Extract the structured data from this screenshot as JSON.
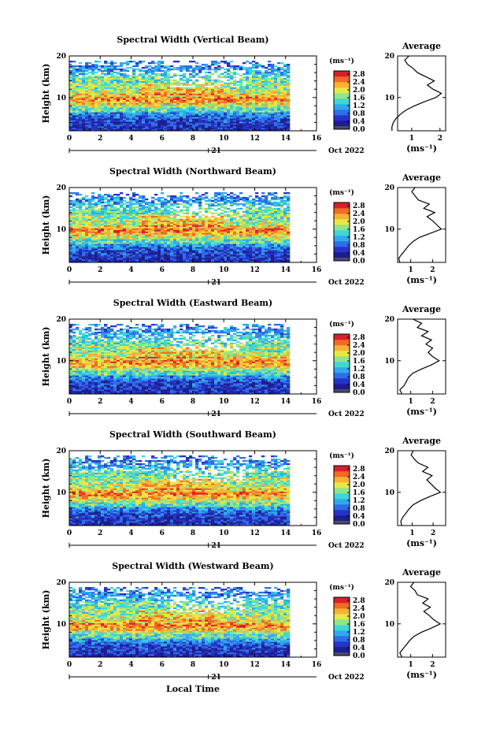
{
  "figure": {
    "xlabel": "Local Time",
    "date_label": "Oct 2022",
    "day_label": "21",
    "avg_title": "Average",
    "avg_xlabel": "(ms⁻¹)",
    "cb_unit": "(ms⁻¹)"
  },
  "colors": {
    "scale": [
      "#1d1d8f",
      "#2533c8",
      "#2f6ee8",
      "#2fa9ee",
      "#3fd6d8",
      "#8ee68a",
      "#e7e845",
      "#f7b133",
      "#f16a26",
      "#d8202a"
    ],
    "cb_bottom": "#4a4a6e"
  },
  "chart_data": [
    {
      "type": "heatmap",
      "title": "Spectral Width (Vertical Beam)",
      "xlabel": "",
      "ylabel": "Height (km)",
      "xlim": [
        0,
        16
      ],
      "ylim": [
        2,
        20
      ],
      "x_ticks": [
        0,
        2,
        4,
        6,
        8,
        10,
        12,
        14,
        16
      ],
      "y_ticks": [
        10,
        20
      ],
      "colorbar": {
        "ticks": [
          "2.8",
          "2.4",
          "2.0",
          "1.6",
          "1.2",
          "0.8",
          "0.4",
          "0.0"
        ],
        "range": [
          0,
          3.0
        ]
      },
      "average": {
        "xlim": [
          0.5,
          2.2
        ],
        "x_ticks": [
          1,
          2
        ],
        "height": [
          2,
          3,
          4,
          5,
          6,
          7,
          8,
          9,
          10,
          11,
          12,
          13,
          14,
          15,
          16,
          17,
          18,
          19,
          20
        ],
        "width": [
          0.3,
          0.3,
          0.35,
          0.45,
          0.6,
          0.8,
          1.1,
          1.45,
          1.85,
          2.05,
          1.75,
          1.55,
          1.8,
          1.5,
          1.2,
          1.05,
          0.85,
          0.75,
          0.9
        ]
      }
    },
    {
      "type": "heatmap",
      "title": "Spectral Width (Northward Beam)",
      "xlabel": "",
      "ylabel": "Height (km)",
      "xlim": [
        0,
        16
      ],
      "ylim": [
        2,
        20
      ],
      "x_ticks": [
        0,
        2,
        4,
        6,
        8,
        10,
        12,
        14,
        16
      ],
      "y_ticks": [
        10,
        20
      ],
      "colorbar": {
        "ticks": [
          "2.8",
          "2.4",
          "2.0",
          "1.6",
          "1.2",
          "0.8",
          "0.4",
          "0.0"
        ],
        "range": [
          0,
          3.0
        ]
      },
      "average": {
        "xlim": [
          0.4,
          2.6
        ],
        "x_ticks": [
          1,
          2
        ],
        "height": [
          2,
          3,
          4,
          5,
          6,
          7,
          8,
          9,
          10,
          11,
          12,
          13,
          14,
          15,
          16,
          17,
          18,
          19,
          20
        ],
        "width": [
          0.5,
          0.45,
          0.6,
          0.75,
          0.9,
          1.1,
          1.4,
          1.9,
          2.4,
          2.2,
          2.0,
          1.75,
          2.1,
          1.6,
          1.85,
          1.35,
          1.2,
          1.05,
          1.2
        ]
      }
    },
    {
      "type": "heatmap",
      "title": "Spectral Width (Eastward Beam)",
      "xlabel": "",
      "ylabel": "Height (km)",
      "xlim": [
        0,
        16
      ],
      "ylim": [
        2,
        20
      ],
      "x_ticks": [
        0,
        2,
        4,
        6,
        8,
        10,
        12,
        14,
        16
      ],
      "y_ticks": [
        10,
        20
      ],
      "colorbar": {
        "ticks": [
          "2.8",
          "2.4",
          "2.0",
          "1.6",
          "1.2",
          "0.8",
          "0.4",
          "0.0"
        ],
        "range": [
          0,
          3.0
        ]
      },
      "average": {
        "xlim": [
          0.4,
          2.6
        ],
        "x_ticks": [
          1,
          2
        ],
        "height": [
          2,
          3,
          4,
          5,
          6,
          7,
          8,
          9,
          10,
          11,
          12,
          13,
          14,
          15,
          16,
          17,
          18,
          19,
          20
        ],
        "width": [
          0.6,
          0.5,
          0.7,
          0.8,
          0.9,
          1.1,
          1.5,
          1.95,
          2.3,
          2.0,
          1.8,
          2.0,
          1.7,
          1.95,
          1.5,
          1.8,
          1.3,
          1.5,
          1.1
        ]
      }
    },
    {
      "type": "heatmap",
      "title": "Spectral Width (Southward Beam)",
      "xlabel": "",
      "ylabel": "Height (km)",
      "xlim": [
        0,
        16
      ],
      "ylim": [
        2,
        20
      ],
      "x_ticks": [
        0,
        2,
        4,
        6,
        8,
        10,
        12,
        14,
        16
      ],
      "y_ticks": [
        10,
        20
      ],
      "colorbar": {
        "ticks": [
          "2.8",
          "2.4",
          "2.0",
          "1.6",
          "1.2",
          "0.8",
          "0.4",
          "0.0"
        ],
        "range": [
          0,
          3.0
        ]
      },
      "average": {
        "xlim": [
          0.3,
          2.6
        ],
        "x_ticks": [
          1,
          2
        ],
        "height": [
          2,
          3,
          4,
          5,
          6,
          7,
          8,
          9,
          10,
          11,
          12,
          13,
          14,
          15,
          16,
          17,
          18,
          19,
          20
        ],
        "width": [
          0.5,
          0.45,
          0.55,
          0.7,
          0.85,
          1.05,
          1.4,
          1.85,
          2.35,
          2.1,
          1.9,
          1.7,
          1.95,
          1.5,
          1.75,
          1.3,
          1.1,
          0.95,
          1.05
        ]
      }
    },
    {
      "type": "heatmap",
      "title": "Spectral Width (Westward Beam)",
      "xlabel": "Local Time",
      "ylabel": "Height (km)",
      "xlim": [
        0,
        16
      ],
      "ylim": [
        2,
        20
      ],
      "x_ticks": [
        0,
        2,
        4,
        6,
        8,
        10,
        12,
        14,
        16
      ],
      "y_ticks": [
        10,
        20
      ],
      "colorbar": {
        "ticks": [
          "2.8",
          "2.4",
          "2.0",
          "1.6",
          "1.2",
          "0.8",
          "0.4",
          "0.0"
        ],
        "range": [
          0,
          3.0
        ]
      },
      "average": {
        "xlim": [
          0.4,
          2.6
        ],
        "x_ticks": [
          1,
          2
        ],
        "height": [
          2,
          3,
          4,
          5,
          6,
          7,
          8,
          9,
          10,
          11,
          12,
          13,
          14,
          15,
          16,
          17,
          18,
          19,
          20
        ],
        "width": [
          0.6,
          0.5,
          0.65,
          0.8,
          0.95,
          1.15,
          1.5,
          1.95,
          2.35,
          2.05,
          1.85,
          1.6,
          1.9,
          1.55,
          1.8,
          1.3,
          1.2,
          1.0,
          1.15
        ]
      }
    }
  ]
}
